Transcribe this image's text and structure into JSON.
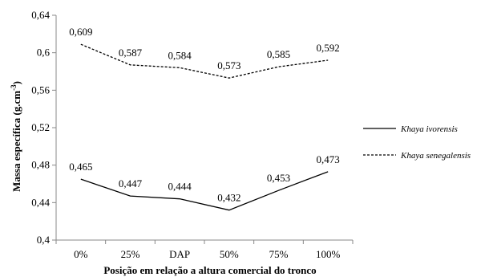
{
  "chart_data": {
    "type": "line",
    "categories": [
      "0%",
      "25%",
      "DAP",
      "50%",
      "75%",
      "100%"
    ],
    "series": [
      {
        "name": "Khaya ivorensis",
        "values": [
          0.465,
          0.447,
          0.444,
          0.432,
          0.453,
          0.473
        ],
        "labels": [
          "0,465",
          "0,447",
          "0,444",
          "0,432",
          "0,453",
          "0,473"
        ],
        "style": "solid",
        "color": "#000000"
      },
      {
        "name": "Khaya senegalensis",
        "values": [
          0.609,
          0.587,
          0.584,
          0.573,
          0.585,
          0.592
        ],
        "labels": [
          "0,609",
          "0,587",
          "0,584",
          "0,573",
          "0,585",
          "0,592"
        ],
        "style": "dashed",
        "color": "#000000"
      }
    ],
    "yticks": [
      0.4,
      0.44,
      0.48,
      0.52,
      0.56,
      0.6,
      0.64
    ],
    "ytick_labels": [
      "0,4",
      "0,44",
      "0,48",
      "0,52",
      "0,56",
      "0,6",
      "0,64"
    ],
    "ylim": [
      0.4,
      0.64
    ],
    "xlabel": "Posição em relação a altura comercial do tronco",
    "ylabel_main": "Massa específica (g.cm",
    "ylabel_sup": "-3",
    "ylabel_end": ")",
    "grid": false,
    "legend_position": "right"
  }
}
